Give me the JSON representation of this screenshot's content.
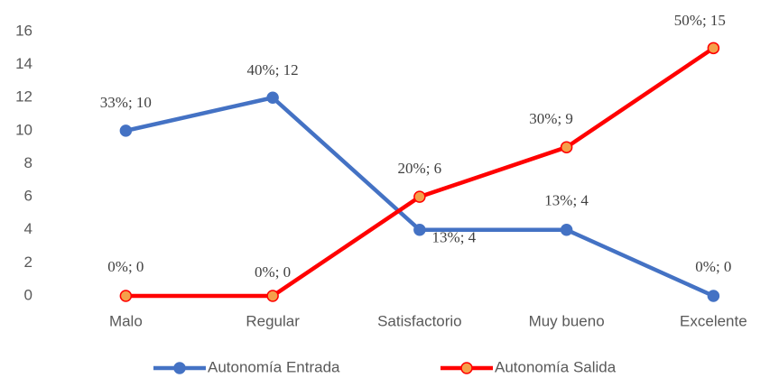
{
  "chart_data": {
    "type": "line",
    "categories": [
      "Malo",
      "Regular",
      "Satisfactorio",
      "Muy bueno",
      "Excelente"
    ],
    "series": [
      {
        "name": "Autonomía Entrada",
        "color": "#4472c4",
        "marker_fill": "#4472c4",
        "values": [
          10,
          12,
          4,
          4,
          0
        ],
        "value_labels": [
          "33%; 10",
          "40%; 12",
          "13%; 4",
          "13%; 4",
          "0%; 0"
        ]
      },
      {
        "name": "Autonomía  Salida",
        "color": "#ff0000",
        "marker_fill": "#f5a04a",
        "values": [
          0,
          0,
          6,
          9,
          15
        ],
        "value_labels": [
          "0%; 0",
          "0%; 0",
          "20%; 6",
          "30%; 9",
          "50%; 15"
        ]
      }
    ],
    "ylim": [
      0,
      16
    ],
    "yticks": [
      0,
      2,
      4,
      6,
      8,
      10,
      12,
      14,
      16
    ],
    "grid": false,
    "legend": "bottom"
  }
}
